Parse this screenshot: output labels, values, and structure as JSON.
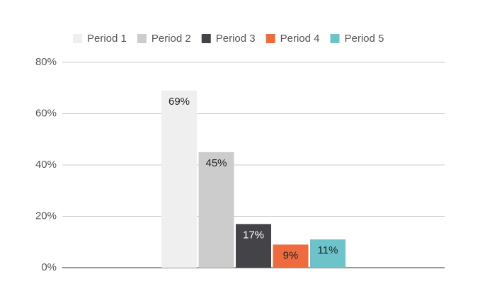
{
  "chart_data": {
    "type": "bar",
    "categories": [
      null
    ],
    "series": [
      {
        "name": "Period 1",
        "color": "#efefef",
        "values": [
          69
        ],
        "value_labels": [
          "69%"
        ]
      },
      {
        "name": "Period 2",
        "color": "#cccccc",
        "values": [
          45
        ],
        "value_labels": [
          "45%"
        ]
      },
      {
        "name": "Period 3",
        "color": "#434348",
        "values": [
          17
        ],
        "value_labels": [
          "17%"
        ]
      },
      {
        "name": "Period 4",
        "color": "#ef6a3c",
        "values": [
          9
        ],
        "value_labels": [
          "9%"
        ]
      },
      {
        "name": "Period 5",
        "color": "#6cc4ca",
        "values": [
          11
        ],
        "value_labels": [
          "11%"
        ]
      }
    ],
    "ylim": [
      0,
      80
    ],
    "yticks": [
      {
        "value": 0,
        "label": "0%"
      },
      {
        "value": 20,
        "label": "20%"
      },
      {
        "value": 40,
        "label": "40%"
      },
      {
        "value": 60,
        "label": "60%"
      },
      {
        "value": 80,
        "label": "80%"
      }
    ],
    "grid": true,
    "legend": "top"
  }
}
